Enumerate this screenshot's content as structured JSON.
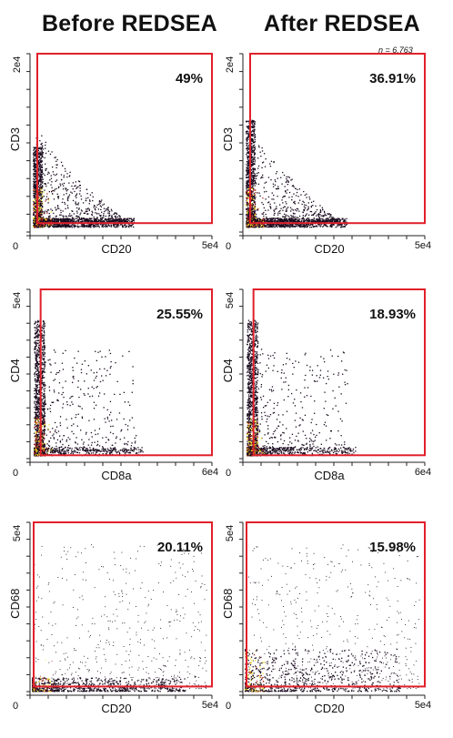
{
  "column_titles": [
    "Before REDSEA",
    "After REDSEA"
  ],
  "annotation": "n = 6,763",
  "colors": {
    "gate": "#e0202a",
    "density_low": "#1a0a1e",
    "density_mid": "#b0261f",
    "density_high": "#f2e52a"
  },
  "chart_data": [
    {
      "type": "scatter",
      "condition": "Before REDSEA",
      "xlabel": "CD20",
      "ylabel": "CD3",
      "xticks": [
        "0",
        "5e4"
      ],
      "yticks": [
        "2e4"
      ],
      "xlim": [
        0,
        50000
      ],
      "ylim": [
        0,
        20000
      ],
      "gate_label": "49%",
      "gate_percent": 49,
      "gate_x": [
        2000,
        50000
      ],
      "gate_y": [
        1000,
        20000
      ]
    },
    {
      "type": "scatter",
      "condition": "After REDSEA",
      "xlabel": "CD20",
      "ylabel": "CD3",
      "xticks": [
        "0",
        "5e4"
      ],
      "yticks": [
        "2e4"
      ],
      "xlim": [
        0,
        50000
      ],
      "ylim": [
        0,
        20000
      ],
      "gate_label": "36.91%",
      "gate_percent": 36.91,
      "gate_x": [
        2000,
        50000
      ],
      "gate_y": [
        1000,
        20000
      ]
    },
    {
      "type": "scatter",
      "condition": "Before REDSEA",
      "xlabel": "CD8a",
      "ylabel": "CD4",
      "xticks": [
        "0",
        "6e4"
      ],
      "yticks": [
        "5e4"
      ],
      "xlim": [
        0,
        60000
      ],
      "ylim": [
        0,
        50000
      ],
      "gate_label": "25.55%",
      "gate_percent": 25.55,
      "gate_x": [
        3500,
        60000
      ],
      "gate_y": [
        1000,
        50000
      ]
    },
    {
      "type": "scatter",
      "condition": "After REDSEA",
      "xlabel": "CD8a",
      "ylabel": "CD4",
      "xticks": [
        "0",
        "6e4"
      ],
      "yticks": [
        "5e4"
      ],
      "xlim": [
        0,
        60000
      ],
      "ylim": [
        0,
        50000
      ],
      "gate_label": "18.93%",
      "gate_percent": 18.93,
      "gate_x": [
        3500,
        60000
      ],
      "gate_y": [
        1000,
        50000
      ]
    },
    {
      "type": "scatter",
      "condition": "Before REDSEA",
      "xlabel": "CD20",
      "ylabel": "CD68",
      "xticks": [
        "0",
        "5e4"
      ],
      "yticks": [
        "5e4"
      ],
      "xlim": [
        0,
        50000
      ],
      "ylim": [
        0,
        50000
      ],
      "gate_label": "20.11%",
      "gate_percent": 20.11,
      "gate_x": [
        1000,
        50000
      ],
      "gate_y": [
        1500,
        50000
      ]
    },
    {
      "type": "scatter",
      "condition": "After REDSEA",
      "xlabel": "CD20",
      "ylabel": "CD68",
      "xticks": [
        "0",
        "5e4"
      ],
      "yticks": [
        "5e4"
      ],
      "xlim": [
        0,
        50000
      ],
      "ylim": [
        0,
        50000
      ],
      "gate_label": "15.98%",
      "gate_percent": 15.98,
      "gate_x": [
        1000,
        50000
      ],
      "gate_y": [
        1500,
        50000
      ]
    }
  ]
}
